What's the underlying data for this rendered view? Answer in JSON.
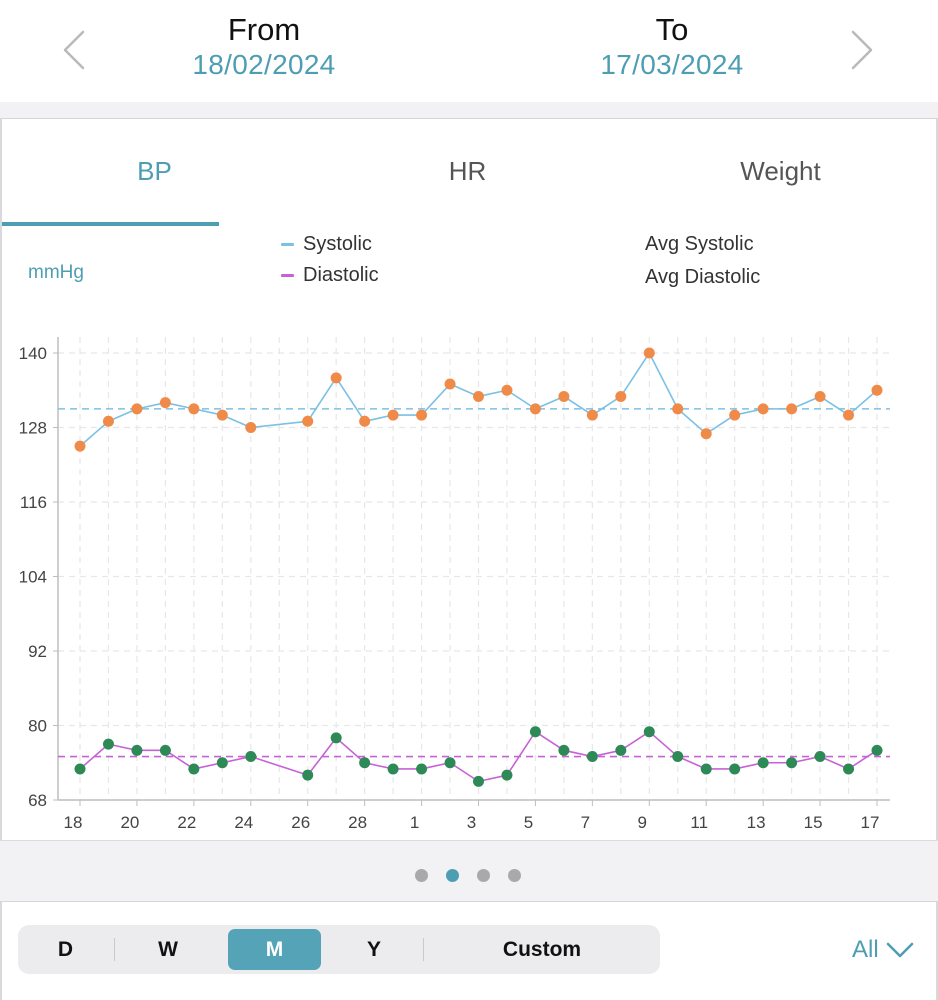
{
  "header": {
    "from_label": "From",
    "from_date": "18/02/2024",
    "to_label": "To",
    "to_date": "17/03/2024"
  },
  "tabs": [
    {
      "label": "BP",
      "active": true
    },
    {
      "label": "HR",
      "active": false
    },
    {
      "label": "Weight",
      "active": false
    }
  ],
  "legend": {
    "systolic": "Systolic",
    "diastolic": "Diastolic",
    "avg_systolic": "Avg Systolic",
    "avg_diastolic": "Avg Diastolic"
  },
  "unit": "mmHg",
  "colors": {
    "accent": "#4e9eb3",
    "systolic_line": "#7cc0e3",
    "systolic_point": "#f08a48",
    "diastolic_line": "#c762d6",
    "diastolic_point": "#2d8a57"
  },
  "chart_data": {
    "type": "line",
    "x_dates": [
      "2024-02-18",
      "2024-02-19",
      "2024-02-20",
      "2024-02-21",
      "2024-02-22",
      "2024-02-23",
      "2024-02-24",
      "2024-02-26",
      "2024-02-27",
      "2024-02-28",
      "2024-02-29",
      "2024-03-01",
      "2024-03-02",
      "2024-03-03",
      "2024-03-04",
      "2024-03-05",
      "2024-03-06",
      "2024-03-07",
      "2024-03-08",
      "2024-03-09",
      "2024-03-10",
      "2024-03-11",
      "2024-03-12",
      "2024-03-13",
      "2024-03-14",
      "2024-03-15",
      "2024-03-16",
      "2024-03-17"
    ],
    "x_tick_labels": [
      "18",
      "20",
      "22",
      "24",
      "26",
      "28",
      "1",
      "3",
      "5",
      "7",
      "9",
      "11",
      "13",
      "15",
      "17"
    ],
    "y_ticks": [
      68,
      80,
      92,
      104,
      116,
      128,
      140
    ],
    "ylim": [
      68,
      140
    ],
    "grid": true,
    "series": [
      {
        "name": "Systolic",
        "values": [
          125,
          129,
          131,
          132,
          131,
          130,
          128,
          129,
          136,
          129,
          130,
          130,
          135,
          133,
          134,
          131,
          133,
          130,
          133,
          140,
          131,
          127,
          130,
          131,
          131,
          133,
          130,
          134
        ]
      },
      {
        "name": "Diastolic",
        "values": [
          73,
          77,
          76,
          76,
          73,
          74,
          75,
          72,
          78,
          74,
          73,
          73,
          74,
          71,
          72,
          79,
          76,
          75,
          76,
          79,
          75,
          73,
          73,
          74,
          74,
          75,
          73,
          76
        ]
      }
    ],
    "avg_lines": [
      {
        "name": "Avg Systolic",
        "value": 131
      },
      {
        "name": "Avg Diastolic",
        "value": 75
      }
    ]
  },
  "pager": {
    "count": 4,
    "active_index": 1
  },
  "range_selector": {
    "options": [
      "D",
      "W",
      "M",
      "Y",
      "Custom"
    ],
    "selected": "M"
  },
  "filter": {
    "label": "All"
  }
}
